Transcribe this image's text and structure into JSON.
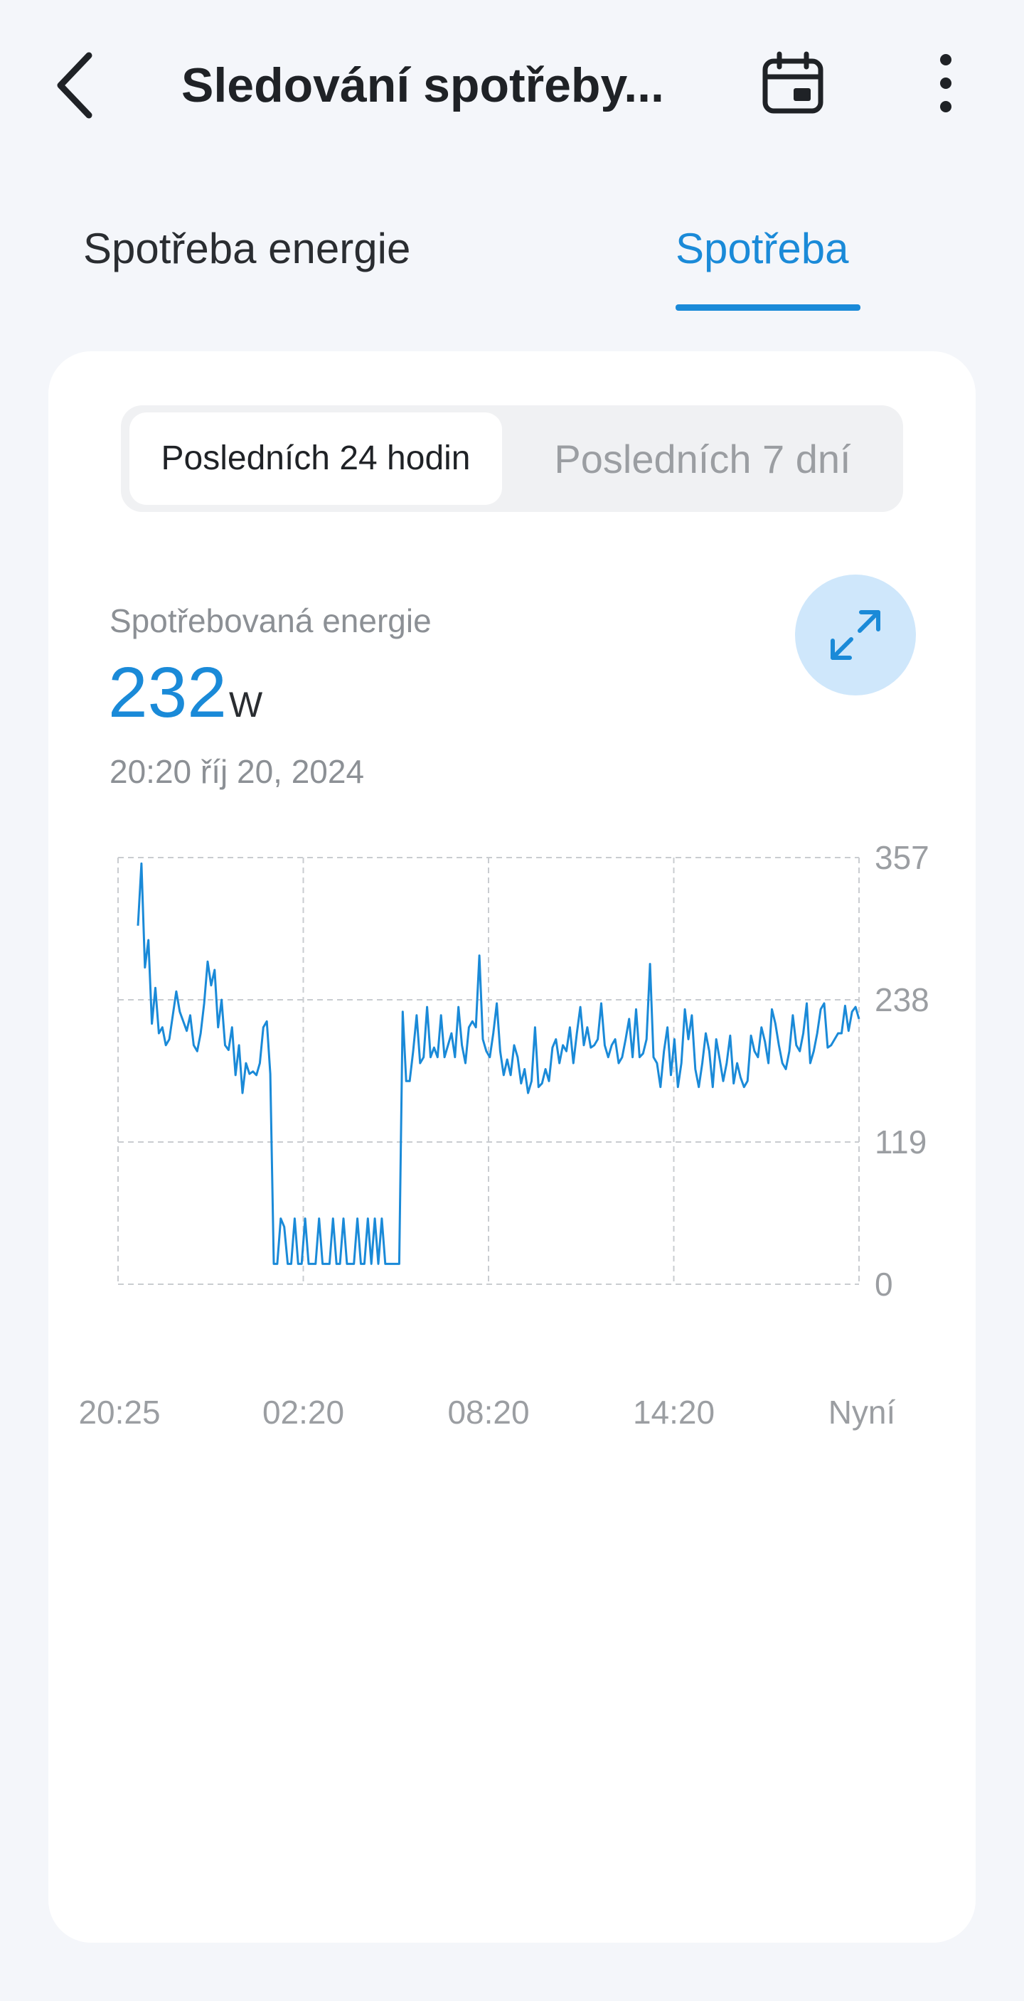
{
  "header": {
    "title": "Sledování spotřeby...",
    "back_icon": "chevron-left-icon",
    "calendar_icon": "calendar-icon",
    "more_icon": "more-vertical-icon"
  },
  "tabs": [
    {
      "label": "Spotřeba energie",
      "active": false
    },
    {
      "label": "Spotřeba",
      "active": true
    }
  ],
  "colors": {
    "accent": "#1a8ad8",
    "accent_light": "#cfe7fb",
    "background": "#f4f6fa",
    "card": "#ffffff",
    "muted_text": "#8c9095"
  },
  "period_selector": {
    "options": [
      "Posledních 24 hodin",
      "Posledních 7 dní"
    ],
    "selected": "Posledních 24 hodin"
  },
  "summary": {
    "label": "Spotřebovaná energie",
    "value": "232",
    "unit": "W",
    "timestamp": "20:20  říj 20, 2024",
    "expand_icon": "expand-icon"
  },
  "chart_data": {
    "type": "line",
    "title": "",
    "xlabel": "",
    "ylabel": "",
    "x_ticks": [
      "20:25",
      "02:20",
      "08:20",
      "14:20",
      "Nyní"
    ],
    "y_ticks": [
      0,
      119,
      238,
      357
    ],
    "ylim": [
      0,
      357
    ],
    "grid": true,
    "series": [
      {
        "color": "#1a8ad8",
        "values": [
          300,
          352,
          265,
          288,
          218,
          248,
          210,
          215,
          200,
          205,
          225,
          245,
          228,
          220,
          212,
          225,
          200,
          195,
          210,
          235,
          270,
          250,
          263,
          215,
          238,
          200,
          196,
          215,
          175,
          200,
          160,
          185,
          176,
          178,
          175,
          185,
          215,
          220,
          176,
          17,
          17,
          55,
          48,
          17,
          17,
          55,
          17,
          17,
          55,
          17,
          17,
          17,
          55,
          17,
          17,
          17,
          55,
          17,
          17,
          55,
          17,
          17,
          17,
          55,
          17,
          17,
          55,
          17,
          55,
          17,
          55,
          17,
          17,
          17,
          17,
          17,
          228,
          170,
          170,
          195,
          225,
          185,
          190,
          232,
          190,
          198,
          190,
          225,
          190,
          200,
          210,
          190,
          232,
          200,
          185,
          215,
          220,
          215,
          275,
          205,
          195,
          190,
          210,
          235,
          195,
          175,
          188,
          175,
          200,
          190,
          168,
          180,
          160,
          170,
          215,
          165,
          168,
          180,
          170,
          198,
          205,
          185,
          200,
          195,
          215,
          185,
          210,
          232,
          200,
          215,
          198,
          200,
          205,
          235,
          200,
          190,
          200,
          205,
          185,
          190,
          205,
          222,
          190,
          230,
          190,
          193,
          205,
          268,
          190,
          185,
          165,
          195,
          215,
          175,
          205,
          165,
          185,
          230,
          205,
          225,
          180,
          165,
          185,
          210,
          195,
          165,
          205,
          188,
          170,
          185,
          208,
          168,
          185,
          173,
          165,
          170,
          208,
          195,
          190,
          215,
          203,
          185,
          230,
          218,
          200,
          185,
          180,
          195,
          225,
          200,
          195,
          210,
          235,
          185,
          195,
          210,
          230,
          235,
          198,
          200,
          205,
          210,
          210,
          233,
          212,
          228,
          232,
          222
        ]
      }
    ]
  }
}
